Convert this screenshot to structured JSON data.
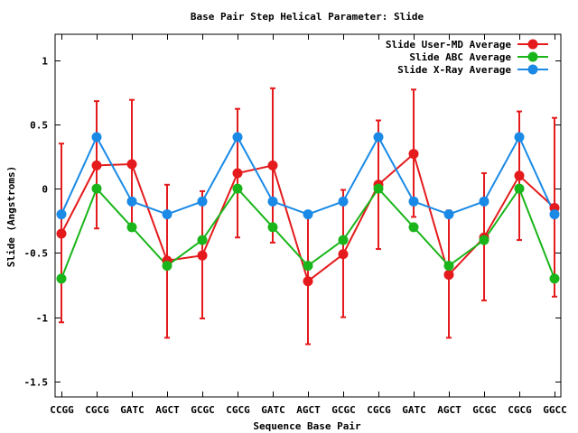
{
  "chart_data": {
    "type": "line",
    "title": "Base Pair Step Helical Parameter: Slide",
    "xlabel": "Sequence Base Pair",
    "ylabel": "Slide (Angstroms)",
    "ylim": [
      -1.62,
      1.2
    ],
    "yticks": [
      -1.5,
      -1,
      -0.5,
      0,
      0.5,
      1
    ],
    "ytick_labels": [
      "-1.5",
      "-1",
      "-0.5",
      "0",
      "0.5",
      "1"
    ],
    "categories": [
      "CCGG",
      "CGCG",
      "GATC",
      "AGCT",
      "GCGC",
      "CGCG",
      "GATC",
      "AGCT",
      "GCGC",
      "CGCG",
      "GATC",
      "AGCT",
      "GCGC",
      "CGCG",
      "GGCC"
    ],
    "legend_position": "top-right",
    "series": [
      {
        "name": "Slide User-MD Average",
        "color": "#e41a1c",
        "values": [
          -0.35,
          0.18,
          0.19,
          -0.56,
          -0.52,
          0.12,
          0.18,
          -0.72,
          -0.51,
          0.03,
          0.27,
          -0.67,
          -0.38,
          0.1,
          -0.15
        ],
        "error_low": [
          -1.04,
          -0.31,
          -0.3,
          -1.16,
          -1.01,
          -0.38,
          -0.42,
          -1.21,
          -1.0,
          -0.47,
          -0.22,
          -1.16,
          -0.87,
          -0.4,
          -0.84
        ],
        "error_high": [
          0.35,
          0.68,
          0.69,
          0.03,
          -0.02,
          0.62,
          0.78,
          -0.22,
          -0.01,
          0.53,
          0.77,
          -0.17,
          0.12,
          0.6,
          0.55
        ]
      },
      {
        "name": "Slide ABC Average",
        "color": "#1ab51a",
        "values": [
          -0.7,
          0.0,
          -0.3,
          -0.6,
          -0.4,
          0.0,
          -0.3,
          -0.6,
          -0.4,
          0.0,
          -0.3,
          -0.6,
          -0.4,
          0.0,
          -0.7
        ]
      },
      {
        "name": "Slide X-Ray Average",
        "color": "#1a8ae6",
        "values": [
          -0.2,
          0.4,
          -0.1,
          -0.2,
          -0.1,
          0.4,
          -0.1,
          -0.2,
          -0.1,
          0.4,
          -0.1,
          -0.2,
          -0.1,
          0.4,
          -0.2
        ]
      }
    ]
  }
}
